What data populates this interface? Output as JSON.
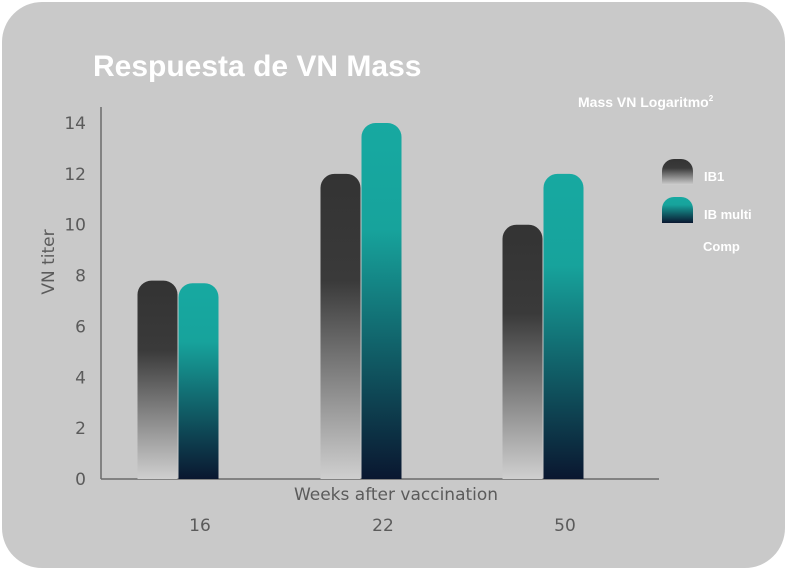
{
  "chart_data": {
    "type": "bar",
    "title": "Respuesta de VN Mass",
    "subtitle": "Mass VN Logaritmo",
    "subtitle_sup": "2",
    "xlabel": "Weeks after vaccination",
    "ylabel": "VN titer",
    "categories": [
      "16",
      "22",
      "50"
    ],
    "ylim": [
      0,
      14
    ],
    "yticks": [
      0,
      2,
      4,
      6,
      8,
      10,
      12,
      14
    ],
    "series": [
      {
        "name": "IB1",
        "values": [
          7.8,
          12,
          10
        ],
        "color_top": "#333333",
        "color_bottom": "#cfcfcf"
      },
      {
        "name": "IB multi",
        "values": [
          7.7,
          14,
          12
        ],
        "color_top": "#17a9a1",
        "color_bottom": "#0a1730"
      }
    ],
    "legend_note": "Comp",
    "legend_position": "right",
    "grid": false
  },
  "colors": {
    "background": "#c9c9c9",
    "axis": "#6a6a6a",
    "text_light": "#ffffff"
  }
}
